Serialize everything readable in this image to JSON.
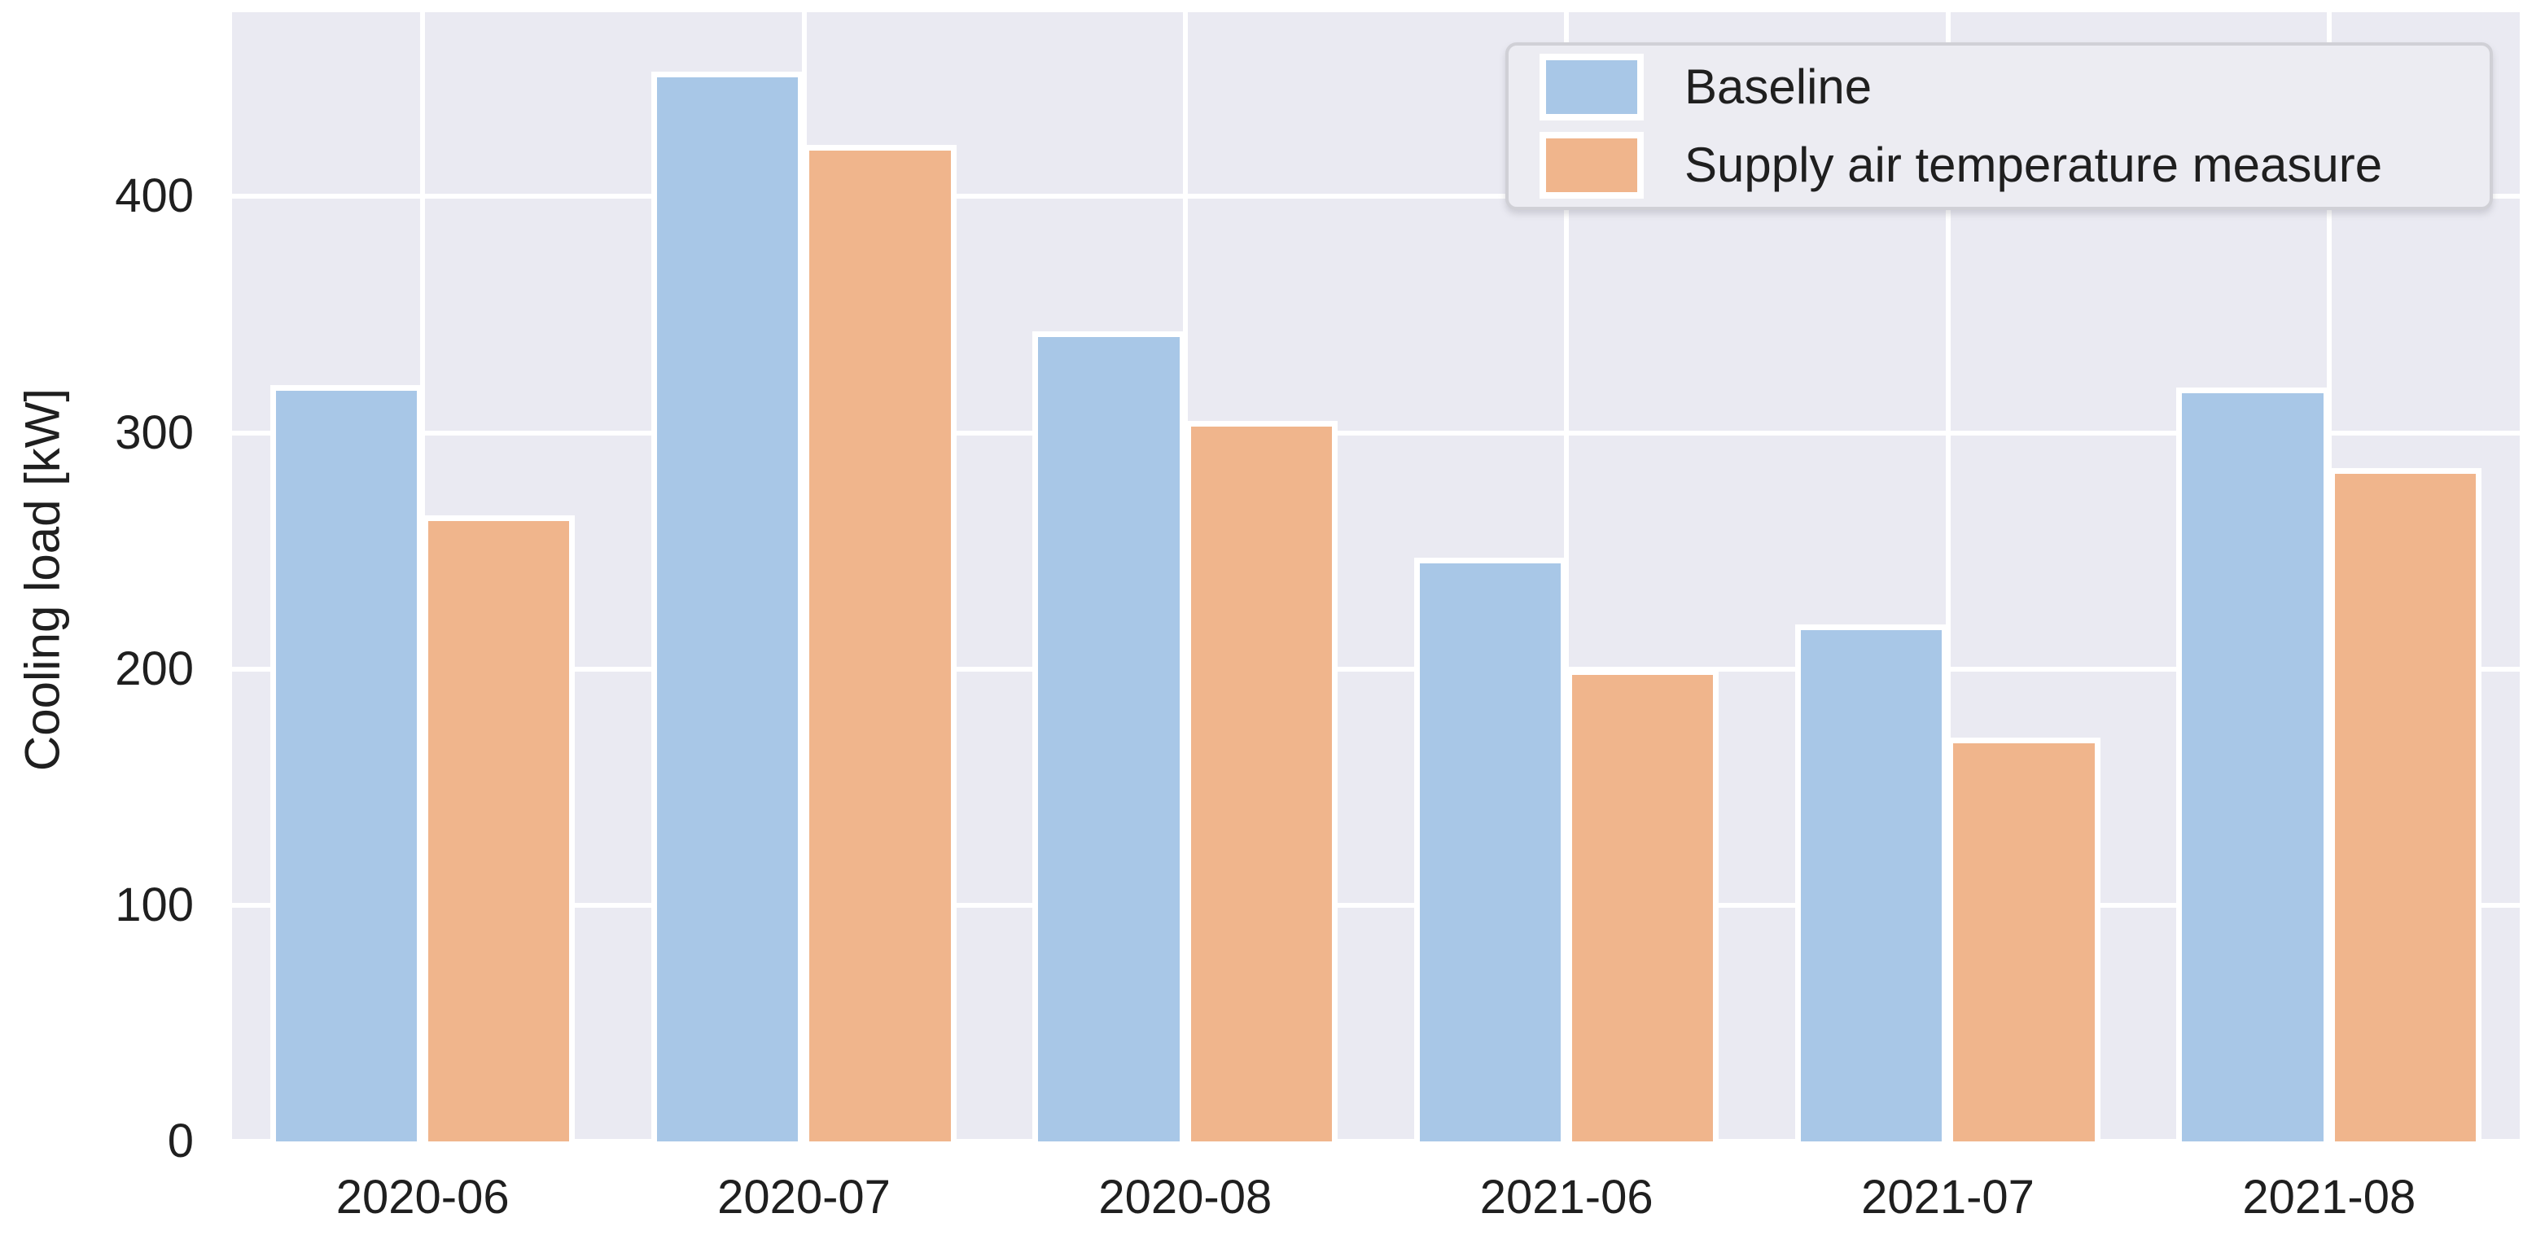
{
  "chart_data": {
    "type": "bar",
    "categories": [
      "2020-06",
      "2020-07",
      "2020-08",
      "2021-06",
      "2021-07",
      "2021-08"
    ],
    "series": [
      {
        "name": "Baseline",
        "color": "#a8c7e7",
        "values": [
          320,
          453,
          343,
          247,
          219,
          319
        ]
      },
      {
        "name": "Supply air temperature measure",
        "color": "#f0b58c",
        "values": [
          265,
          422,
          305,
          200,
          171,
          285
        ]
      }
    ],
    "title": "",
    "xlabel": "",
    "ylabel": "Cooling load [kW]",
    "yticks": [
      0,
      100,
      200,
      300,
      400
    ],
    "ylim": [
      0,
      478
    ],
    "grid": true,
    "legend_position": "upper right",
    "colors": {
      "figure_background": "#ffffff",
      "plot_background": "#eaeaf2",
      "gridline": "#ffffff",
      "bar_edge": "#ffffff",
      "text": "#1f1f1f",
      "legend_background": "#ececf2",
      "legend_border": "#d0d0d6"
    }
  }
}
